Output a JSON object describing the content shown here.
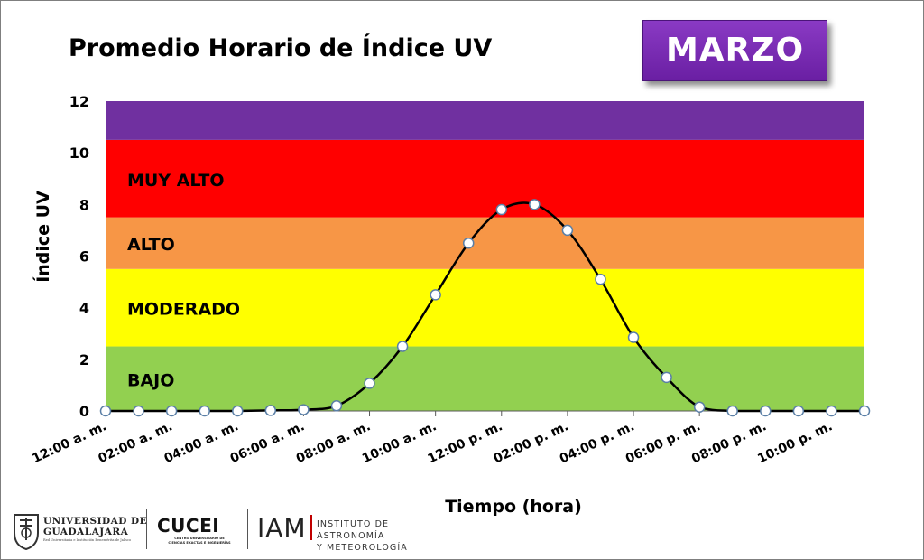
{
  "month": "MARZO",
  "logos": {
    "ug_line1": "UNIVERSIDAD DE",
    "ug_line2": "GUADALAJARA",
    "ug_line3": "Red Universitaria e Institución Benemérita de Jalisco",
    "cucei": "CUCEI",
    "cucei_sub1": "CENTRO UNIVERSITARIO DE",
    "cucei_sub2": "CIENCIAS EXACTAS E INGENIERÍAS",
    "iam": "IAM",
    "iam_sub1": "INSTITUTO DE ASTRONOMÍA",
    "iam_sub2": "Y METEOROLOGÍA"
  },
  "chart_data": {
    "type": "line",
    "title": "Promedio Horario de Índice UV",
    "xlabel": "Tiempo (hora)",
    "ylabel": "Índice UV",
    "ylim": [
      0,
      12
    ],
    "yticks": [
      "0",
      "2",
      "4",
      "6",
      "8",
      "10",
      "12"
    ],
    "xtick_labels": [
      "12:00 a. m.",
      "02:00 a. m.",
      "04:00 a. m.",
      "06:00 a. m.",
      "08:00 a. m.",
      "10:00 a. m.",
      "12:00 p. m.",
      "02:00 p. m.",
      "04:00 p. m.",
      "06:00 p. m.",
      "08:00 p. m.",
      "10:00 p. m."
    ],
    "bands": [
      {
        "label": "BAJO",
        "from": 0,
        "to": 2.5,
        "color": "#92d050"
      },
      {
        "label": "MODERADO",
        "from": 2.5,
        "to": 5.5,
        "color": "#ffff00"
      },
      {
        "label": "ALTO",
        "from": 5.5,
        "to": 7.5,
        "color": "#f79646"
      },
      {
        "label": "MUY ALTO",
        "from": 7.5,
        "to": 10.5,
        "color": "#ff0000"
      },
      {
        "label": "",
        "from": 10.5,
        "to": 12,
        "color": "#7030a0"
      }
    ],
    "x": [
      "12:00 a. m.",
      "01:00 a. m.",
      "02:00 a. m.",
      "03:00 a. m.",
      "04:00 a. m.",
      "05:00 a. m.",
      "06:00 a. m.",
      "07:00 a. m.",
      "08:00 a. m.",
      "09:00 a. m.",
      "10:00 a. m.",
      "11:00 a. m.",
      "12:00 p. m.",
      "01:00 p. m.",
      "02:00 p. m.",
      "03:00 p. m.",
      "04:00 p. m.",
      "05:00 p. m.",
      "06:00 p. m.",
      "07:00 p. m.",
      "08:00 p. m.",
      "09:00 p. m.",
      "10:00 p. m.",
      "11:00 p. m."
    ],
    "values": [
      0,
      0,
      0,
      0,
      0,
      0.02,
      0.05,
      0.2,
      1.07,
      2.5,
      4.5,
      6.5,
      7.8,
      8.0,
      7.0,
      5.1,
      2.85,
      1.3,
      0.15,
      0,
      0,
      0,
      0,
      0
    ],
    "line_color": "#000000",
    "marker_fill": "#ffffff",
    "marker_stroke": "#5b7fa6"
  }
}
